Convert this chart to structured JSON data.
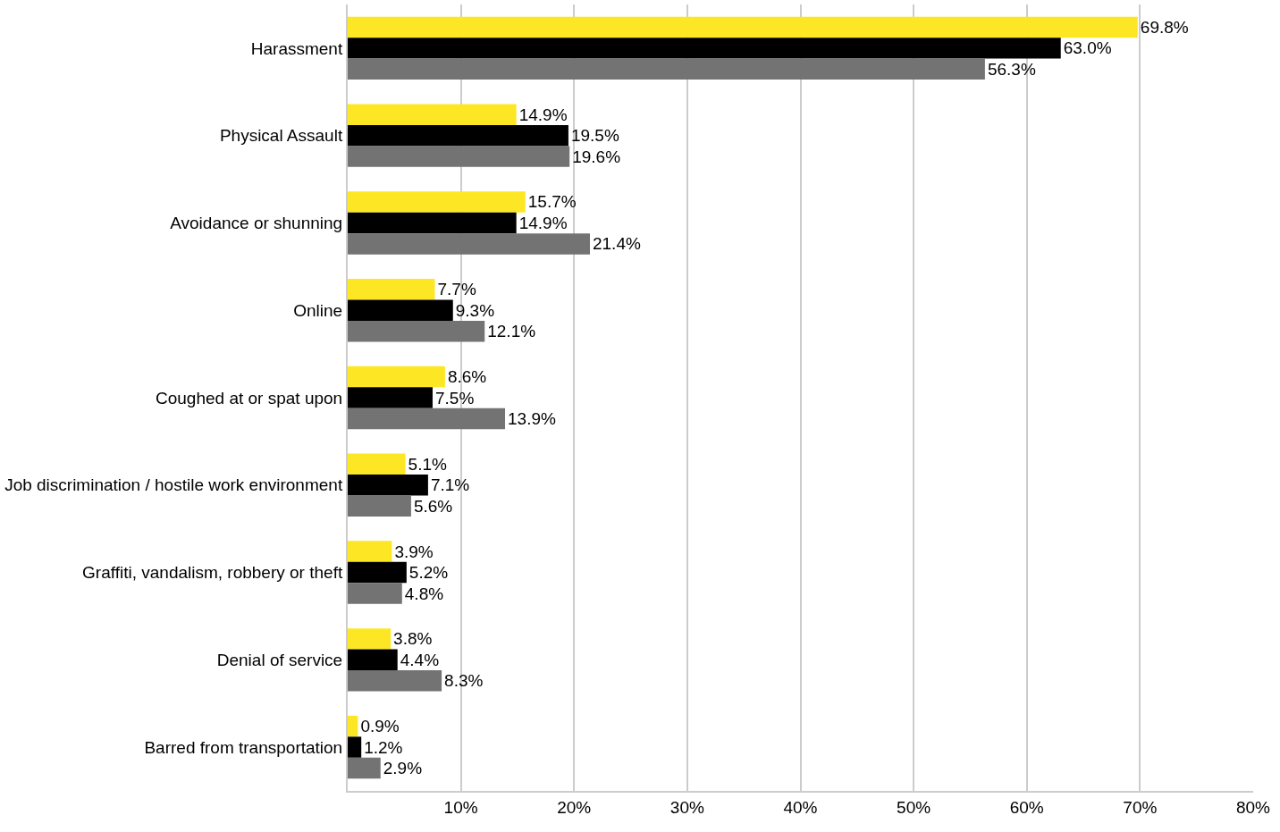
{
  "chart_data": {
    "type": "bar",
    "orientation": "horizontal",
    "categories": [
      "Harassment",
      "Physical Assault",
      "Avoidance or shunning",
      "Online",
      "Coughed at or spat upon",
      "Job discrimination / hostile work environment",
      "Graffiti, vandalism, robbery or theft",
      "Denial of service",
      "Barred from transportation"
    ],
    "series": [
      {
        "color": "#fde725",
        "values": [
          69.8,
          14.9,
          15.7,
          7.7,
          8.6,
          5.1,
          3.9,
          3.8,
          0.9
        ],
        "value_labels": [
          "69.8%",
          "14.9%",
          "15.7%",
          "7.7%",
          "8.6%",
          "5.1%",
          "3.9%",
          "3.8%",
          "0.9%"
        ]
      },
      {
        "color": "#000000",
        "values": [
          63.0,
          19.5,
          14.9,
          9.3,
          7.5,
          7.1,
          5.2,
          4.4,
          1.2
        ],
        "value_labels": [
          "63.0%",
          "19.5%",
          "14.9%",
          "9.3%",
          "7.5%",
          "7.1%",
          "5.2%",
          "4.4%",
          "1.2%"
        ]
      },
      {
        "color": "#737373",
        "values": [
          56.3,
          19.6,
          21.4,
          12.1,
          13.9,
          5.6,
          4.8,
          8.3,
          2.9
        ],
        "value_labels": [
          "56.3%",
          "19.6%",
          "21.4%",
          "12.1%",
          "13.9%",
          "5.6%",
          "4.8%",
          "8.3%",
          "2.9%"
        ]
      }
    ],
    "xlim": [
      0,
      80
    ],
    "xticks": [
      {
        "value": 10,
        "label": "10%"
      },
      {
        "value": 20,
        "label": "20%"
      },
      {
        "value": 30,
        "label": "30%"
      },
      {
        "value": 40,
        "label": "40%"
      },
      {
        "value": 50,
        "label": "50%"
      },
      {
        "value": 60,
        "label": "60%"
      },
      {
        "value": 70,
        "label": "70%"
      },
      {
        "value": 80,
        "label": "80%"
      }
    ],
    "grid": "x"
  }
}
